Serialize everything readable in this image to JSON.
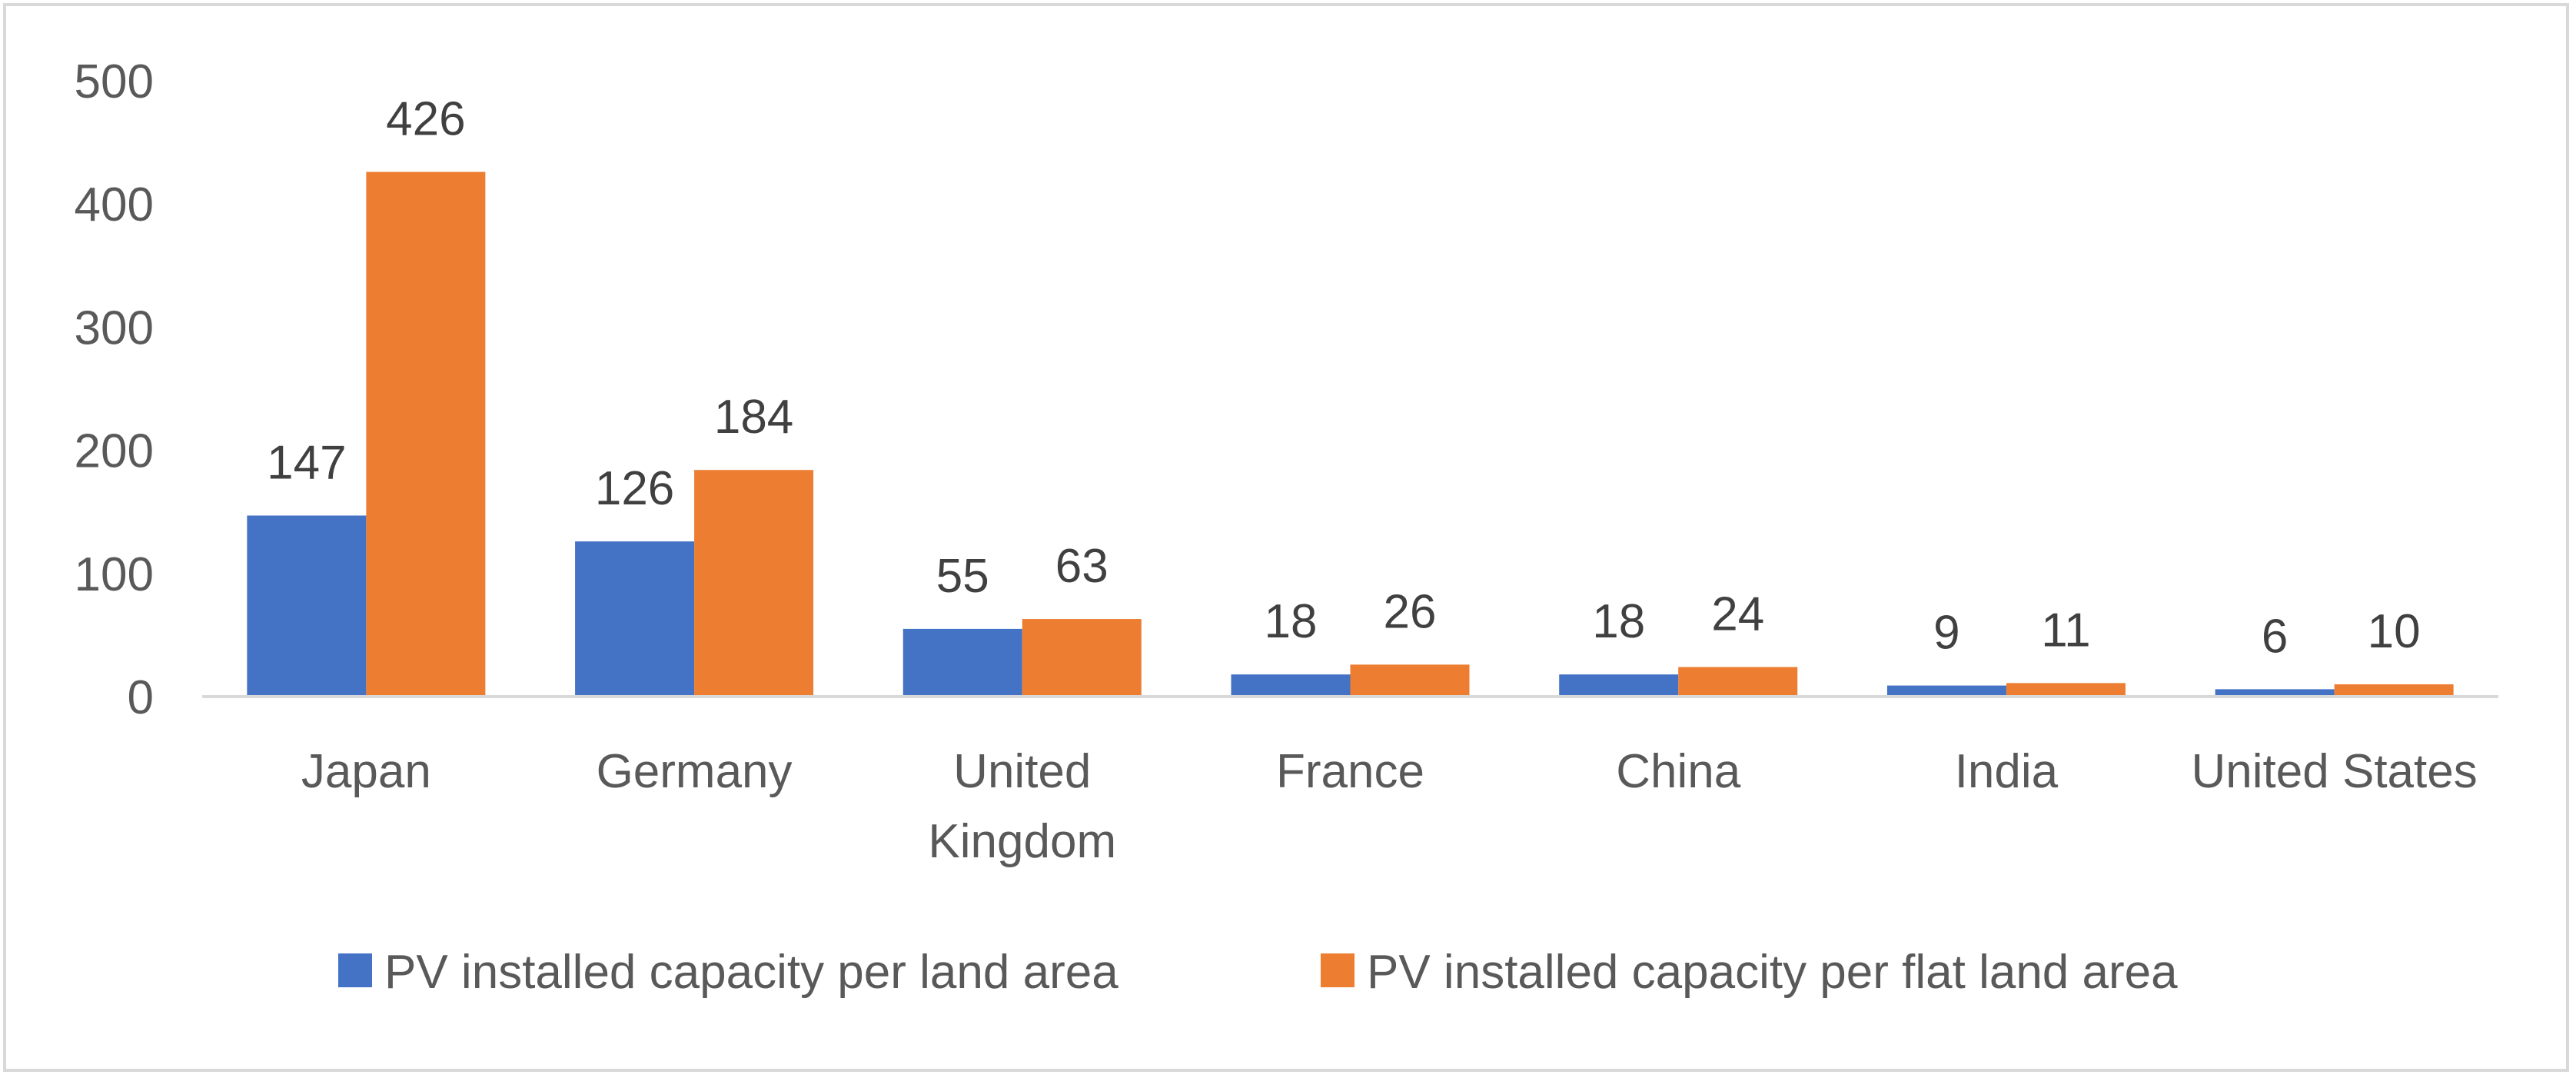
{
  "chart_data": {
    "type": "bar",
    "title": "",
    "xlabel": "",
    "ylabel": "",
    "ylim": [
      0,
      500
    ],
    "yticks": [
      0,
      100,
      200,
      300,
      400,
      500
    ],
    "grid": false,
    "legend_position": "bottom",
    "categories": [
      [
        "Japan"
      ],
      [
        "Germany"
      ],
      [
        "United",
        "Kingdom"
      ],
      [
        "France"
      ],
      [
        "China"
      ],
      [
        "India"
      ],
      [
        "United States"
      ]
    ],
    "series": [
      {
        "name": "PV installed capacity per land area",
        "color": "#4472c4",
        "values": [
          147,
          126,
          55,
          18,
          18,
          9,
          6
        ]
      },
      {
        "name": "PV installed capacity per flat land area",
        "color": "#ed7d31",
        "values": [
          426,
          184,
          63,
          26,
          24,
          11,
          10
        ]
      }
    ]
  }
}
